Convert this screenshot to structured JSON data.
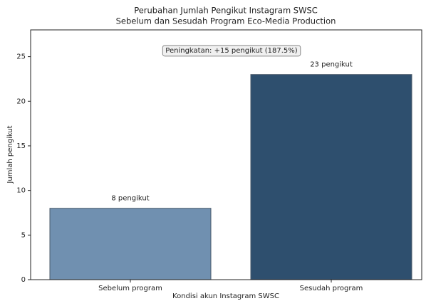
{
  "chart_data": {
    "type": "bar",
    "title": "Perubahan Jumlah Pengikut Instagram SWSC",
    "subtitle": "Sebelum dan Sesudah Program Eco-Media Production",
    "xlabel": "Kondisi akun Instagram SWSC",
    "ylabel": "Jumlah pengikut",
    "categories": [
      "Sebelum program",
      "Sesudah program"
    ],
    "values": [
      8,
      23
    ],
    "value_labels": [
      "8 pengikut",
      "23 pengikut"
    ],
    "colors": [
      "#7090b0",
      "#2e4f6e"
    ],
    "annotation": "Peningkatan: +15 pengikut (187.5%)",
    "ylim": [
      0,
      28
    ],
    "yticks": [
      0,
      5,
      10,
      15,
      20,
      25
    ],
    "grid": false
  }
}
